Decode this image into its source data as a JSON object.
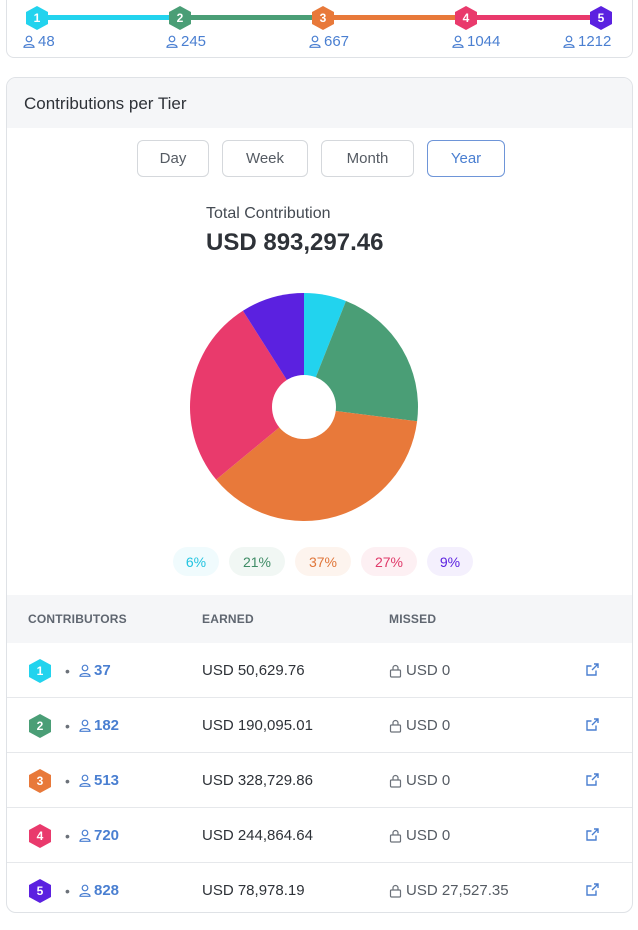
{
  "colors": {
    "tier1": "#22d3ee",
    "tier2": "#4a9e76",
    "tier3": "#e8793a",
    "tier4": "#e93a6c",
    "tier5": "#5b21e0",
    "accent": "#4a7fd1"
  },
  "top_progress": {
    "tiers": [
      {
        "number": "1",
        "count": "48"
      },
      {
        "number": "2",
        "count": "245"
      },
      {
        "number": "3",
        "count": "667"
      },
      {
        "number": "4",
        "count": "1044"
      },
      {
        "number": "5",
        "count": "1212"
      }
    ]
  },
  "card": {
    "title": "Contributions per Tier",
    "tabs": [
      "Day",
      "Week",
      "Month",
      "Year"
    ],
    "active_tab": "Year",
    "total_label": "Total Contribution",
    "total_value": "USD 893,297.46",
    "percent_labels": [
      "6%",
      "21%",
      "37%",
      "27%",
      "9%"
    ]
  },
  "chart_data": {
    "type": "pie",
    "categories": [
      "Tier 1",
      "Tier 2",
      "Tier 3",
      "Tier 4",
      "Tier 5"
    ],
    "values": [
      6,
      21,
      37,
      27,
      9
    ],
    "donut": true
  },
  "table": {
    "headers": [
      "CONTRIBUTORS",
      "EARNED",
      "MISSED"
    ],
    "rows": [
      {
        "tier": "1",
        "dot": "•",
        "contributors": "37",
        "earned": "USD 50,629.76",
        "missed": "USD 0"
      },
      {
        "tier": "2",
        "dot": "•",
        "contributors": "182",
        "earned": "USD 190,095.01",
        "missed": "USD 0"
      },
      {
        "tier": "3",
        "dot": "•",
        "contributors": "513",
        "earned": "USD 328,729.86",
        "missed": "USD 0"
      },
      {
        "tier": "4",
        "dot": "•",
        "contributors": "720",
        "earned": "USD 244,864.64",
        "missed": "USD 0"
      },
      {
        "tier": "5",
        "dot": "•",
        "contributors": "828",
        "earned": "USD 78,978.19",
        "missed": "USD 27,527.35"
      }
    ]
  },
  "icons": {
    "person": "user-icon",
    "lock": "lock-icon",
    "external": "external-link-icon"
  }
}
